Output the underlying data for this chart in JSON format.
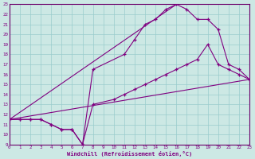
{
  "xlabel": "Windchill (Refroidissement éolien,°C)",
  "background_color": "#cce8e4",
  "line_color": "#800080",
  "grid_color": "#99cccc",
  "xmin": 0,
  "xmax": 23,
  "ymin": 9,
  "ymax": 23,
  "series1_x": [
    0,
    1,
    2,
    3,
    4,
    5,
    6,
    7,
    8,
    10,
    11,
    12,
    13,
    14,
    15,
    16,
    17,
    18,
    19,
    20,
    21,
    22,
    23
  ],
  "series1_y": [
    11.5,
    11.5,
    11.5,
    11.5,
    11.0,
    10.5,
    10.5,
    9.0,
    13.0,
    13.5,
    14.0,
    14.5,
    15.0,
    15.5,
    16.0,
    16.5,
    17.0,
    17.5,
    19.0,
    17.0,
    16.5,
    16.0,
    15.5
  ],
  "series2_x": [
    0,
    1,
    2,
    3,
    4,
    5,
    6,
    7,
    8,
    11,
    12,
    13,
    14,
    15,
    16,
    17,
    18,
    19,
    20,
    21,
    22,
    23
  ],
  "series2_y": [
    11.5,
    11.5,
    11.5,
    11.5,
    11.0,
    10.5,
    10.5,
    9.0,
    16.5,
    18.0,
    19.5,
    21.0,
    21.5,
    22.5,
    23.0,
    22.5,
    21.5,
    21.5,
    20.5,
    17.0,
    16.5,
    15.5
  ],
  "series3_x": [
    0,
    23
  ],
  "series3_y": [
    11.5,
    15.5
  ],
  "series4_x": [
    0,
    16
  ],
  "series4_y": [
    11.5,
    23.0
  ],
  "xtick_labels": [
    "0",
    "1",
    "2",
    "3",
    "4",
    "5",
    "6",
    "7",
    "8",
    "9",
    "10",
    "11",
    "12",
    "13",
    "14",
    "15",
    "16",
    "17",
    "18",
    "19",
    "20",
    "21",
    "22",
    "23"
  ],
  "ytick_labels": [
    "9",
    "10",
    "11",
    "12",
    "13",
    "14",
    "15",
    "16",
    "17",
    "18",
    "19",
    "20",
    "21",
    "22",
    "23"
  ]
}
